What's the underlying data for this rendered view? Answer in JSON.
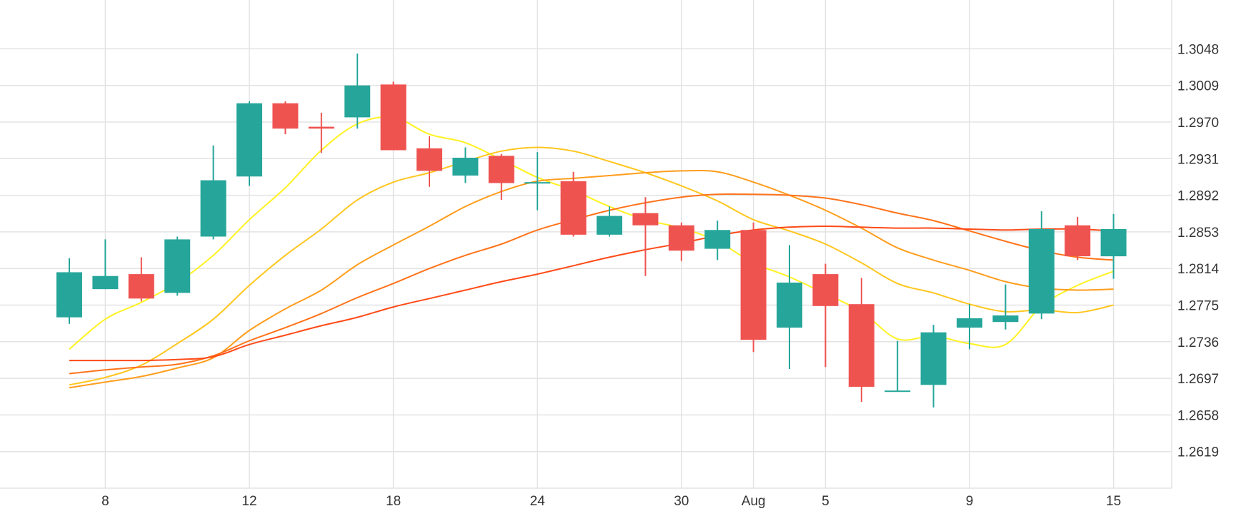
{
  "chart_data": {
    "type": "candlestick",
    "title": "",
    "xlabel": "",
    "ylabel": "",
    "ylim": [
      1.258,
      1.31
    ],
    "y_ticks": [
      "1.2619",
      "1.2658",
      "1.2697",
      "1.2736",
      "1.2775",
      "1.2814",
      "1.2853",
      "1.2892",
      "1.2931",
      "1.2970",
      "1.3009",
      "1.3048"
    ],
    "x_ticks": [
      {
        "label": "8",
        "index": 1
      },
      {
        "label": "12",
        "index": 5
      },
      {
        "label": "18",
        "index": 9
      },
      {
        "label": "24",
        "index": 13
      },
      {
        "label": "30",
        "index": 17
      },
      {
        "label": "Aug",
        "index": 19
      },
      {
        "label": "5",
        "index": 21
      },
      {
        "label": "9",
        "index": 25
      },
      {
        "label": "15",
        "index": 29
      }
    ],
    "candles": [
      {
        "o": 1.2762,
        "h": 1.2825,
        "l": 1.2755,
        "c": 1.281
      },
      {
        "o": 1.2792,
        "h": 1.2845,
        "l": 1.2792,
        "c": 1.2806
      },
      {
        "o": 1.2808,
        "h": 1.2826,
        "l": 1.2779,
        "c": 1.2782
      },
      {
        "o": 1.2788,
        "h": 1.2848,
        "l": 1.2785,
        "c": 1.2845
      },
      {
        "o": 1.2848,
        "h": 1.2945,
        "l": 1.2845,
        "c": 1.2908
      },
      {
        "o": 1.2912,
        "h": 1.2992,
        "l": 1.2902,
        "c": 1.299
      },
      {
        "o": 1.299,
        "h": 1.2992,
        "l": 1.2957,
        "c": 1.2963
      },
      {
        "o": 1.2965,
        "h": 1.298,
        "l": 1.2937,
        "c": 1.2963
      },
      {
        "o": 1.2975,
        "h": 1.3043,
        "l": 1.2963,
        "c": 1.3009
      },
      {
        "o": 1.301,
        "h": 1.3013,
        "l": 1.294,
        "c": 1.294
      },
      {
        "o": 1.2942,
        "h": 1.2955,
        "l": 1.2901,
        "c": 1.2918
      },
      {
        "o": 1.2913,
        "h": 1.2943,
        "l": 1.2905,
        "c": 1.2932
      },
      {
        "o": 1.2934,
        "h": 1.2936,
        "l": 1.2887,
        "c": 1.2905
      },
      {
        "o": 1.2906,
        "h": 1.2938,
        "l": 1.2876,
        "c": 1.2906
      },
      {
        "o": 1.2907,
        "h": 1.2917,
        "l": 1.2848,
        "c": 1.285
      },
      {
        "o": 1.285,
        "h": 1.288,
        "l": 1.2848,
        "c": 1.287
      },
      {
        "o": 1.2873,
        "h": 1.289,
        "l": 1.2806,
        "c": 1.286
      },
      {
        "o": 1.286,
        "h": 1.2863,
        "l": 1.2822,
        "c": 1.2833
      },
      {
        "o": 1.2835,
        "h": 1.2865,
        "l": 1.2823,
        "c": 1.2855
      },
      {
        "o": 1.2855,
        "h": 1.2863,
        "l": 1.2725,
        "c": 1.2738
      },
      {
        "o": 1.2751,
        "h": 1.2839,
        "l": 1.2707,
        "c": 1.2799
      },
      {
        "o": 1.2808,
        "h": 1.2819,
        "l": 1.2709,
        "c": 1.2774
      },
      {
        "o": 1.2776,
        "h": 1.2804,
        "l": 1.2672,
        "c": 1.2688
      },
      {
        "o": 1.2684,
        "h": 1.2737,
        "l": 1.2683,
        "c": 1.2684
      },
      {
        "o": 1.269,
        "h": 1.2754,
        "l": 1.2666,
        "c": 1.2746
      },
      {
        "o": 1.2751,
        "h": 1.2776,
        "l": 1.2728,
        "c": 1.2761
      },
      {
        "o": 1.2757,
        "h": 1.2797,
        "l": 1.2749,
        "c": 1.2764
      },
      {
        "o": 1.2766,
        "h": 1.2875,
        "l": 1.276,
        "c": 1.2856
      },
      {
        "o": 1.286,
        "h": 1.2869,
        "l": 1.2823,
        "c": 1.2827
      },
      {
        "o": 1.2827,
        "h": 1.2872,
        "l": 1.2803,
        "c": 1.2856
      }
    ],
    "moving_averages": [
      {
        "color": "#fff220",
        "values": [
          1.2728,
          1.276,
          1.2778,
          1.2799,
          1.2828,
          1.2866,
          1.29,
          1.294,
          1.2968,
          1.2975,
          1.2957,
          1.2948,
          1.293,
          1.2911,
          1.2897,
          1.288,
          1.2866,
          1.2857,
          1.2843,
          1.282,
          1.2805,
          1.2787,
          1.2768,
          1.2739,
          1.2742,
          1.2734,
          1.2733,
          1.2774,
          1.2796,
          1.2811
        ]
      },
      {
        "color": "#ffc61e",
        "values": [
          1.269,
          1.2698,
          1.2711,
          1.2734,
          1.276,
          1.2796,
          1.2828,
          1.2856,
          1.2887,
          1.2906,
          1.2916,
          1.2928,
          1.2939,
          1.2943,
          1.2939,
          1.2928,
          1.2916,
          1.2902,
          1.2886,
          1.2866,
          1.2854,
          1.284,
          1.282,
          1.2798,
          1.2788,
          1.2776,
          1.2768,
          1.277,
          1.2767,
          1.2775
        ]
      },
      {
        "color": "#ff9d1c",
        "values": [
          1.2687,
          1.2693,
          1.2699,
          1.2708,
          1.2719,
          1.2748,
          1.2771,
          1.2791,
          1.2818,
          1.2839,
          1.2859,
          1.288,
          1.2896,
          1.2907,
          1.291,
          1.2913,
          1.2916,
          1.2918,
          1.2917,
          1.2906,
          1.2892,
          1.2876,
          1.2857,
          1.2836,
          1.2823,
          1.2812,
          1.28,
          1.2793,
          1.2791,
          1.2792
        ]
      },
      {
        "color": "#ff731a",
        "values": [
          1.2702,
          1.2706,
          1.2709,
          1.2712,
          1.2721,
          1.2737,
          1.2751,
          1.2766,
          1.2783,
          1.2798,
          1.2814,
          1.2828,
          1.284,
          1.2855,
          1.2866,
          1.2876,
          1.2884,
          1.289,
          1.2893,
          1.2893,
          1.2892,
          1.2889,
          1.2882,
          1.2873,
          1.2865,
          1.2854,
          1.2843,
          1.2833,
          1.2826,
          1.2823
        ]
      },
      {
        "color": "#ff4a17",
        "values": [
          1.2716,
          1.2716,
          1.2716,
          1.2717,
          1.272,
          1.2733,
          1.2743,
          1.2753,
          1.2762,
          1.2773,
          1.2782,
          1.2791,
          1.28,
          1.2808,
          1.2817,
          1.2826,
          1.2834,
          1.2841,
          1.2849,
          1.2855,
          1.2858,
          1.2859,
          1.2858,
          1.2857,
          1.2857,
          1.2856,
          1.2855,
          1.2856,
          1.2856,
          1.2854
        ]
      }
    ],
    "colors": {
      "up": "#26a69a",
      "down": "#ef5350",
      "grid": "#e3e3e3",
      "text": "#333333"
    },
    "grid": true,
    "legend": "none"
  }
}
